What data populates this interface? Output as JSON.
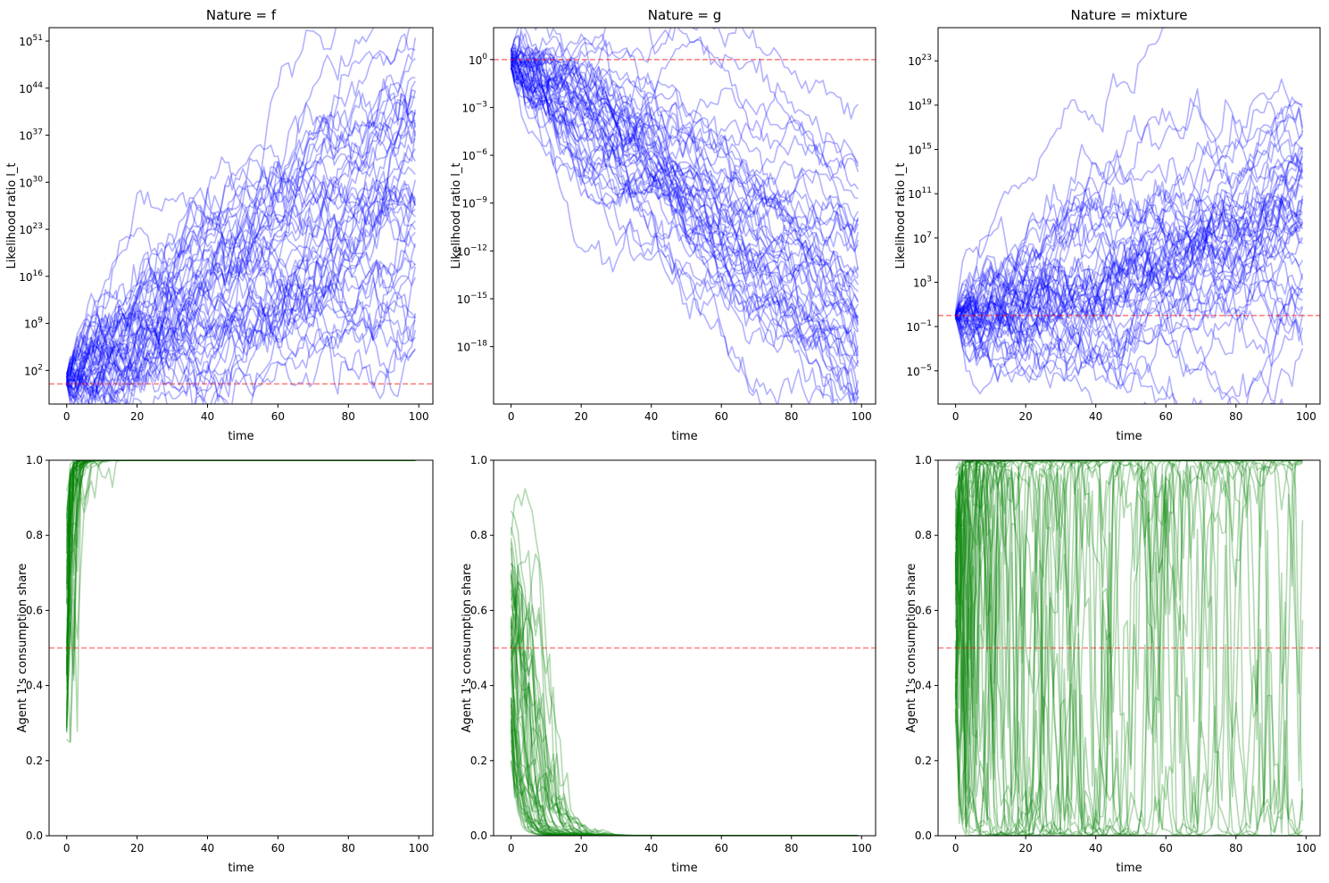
{
  "figure": {
    "colors": {
      "lr_line": "#0000ff",
      "share_line": "#008000",
      "ref_line": "#ff0000"
    },
    "line_alpha": 0.3,
    "ref_alpha": 0.5
  },
  "chart_data": [
    {
      "type": "line",
      "id": "lr-f",
      "title": "Nature = f",
      "xlabel": "time",
      "ylabel": "Likelihood ratio l_t",
      "yscale": "log",
      "xlim": [
        -5,
        104
      ],
      "ylim_exp": [
        -3,
        53
      ],
      "xticks": [
        0,
        20,
        40,
        60,
        80,
        100
      ],
      "yticks": [
        {
          "base": "10",
          "exp": "2"
        },
        {
          "base": "10",
          "exp": "9"
        },
        {
          "base": "10",
          "exp": "16"
        },
        {
          "base": "10",
          "exp": "23"
        },
        {
          "base": "10",
          "exp": "30"
        },
        {
          "base": "10",
          "exp": "37"
        },
        {
          "base": "10",
          "exp": "44"
        },
        {
          "base": "10",
          "exp": "51"
        }
      ],
      "ref_line_exp": 0,
      "series_count": 50,
      "n_steps": 100,
      "start_exp": [
        -0.3,
        1.5
      ],
      "drift_exp": 0.3,
      "vol_exp": 1.6,
      "color": "#0000ff",
      "grid": false
    },
    {
      "type": "line",
      "id": "lr-g",
      "title": "Nature = g",
      "xlabel": "time",
      "ylabel": "Likelihood ratio l_t",
      "yscale": "log",
      "xlim": [
        -5,
        104
      ],
      "ylim_exp": [
        -21.6,
        2
      ],
      "xticks": [
        0,
        20,
        40,
        60,
        80,
        100
      ],
      "yticks": [
        {
          "base": "10",
          "exp": "0"
        },
        {
          "base": "10",
          "exp": "−3"
        },
        {
          "base": "10",
          "exp": "−6"
        },
        {
          "base": "10",
          "exp": "−9"
        },
        {
          "base": "10",
          "exp": "−12"
        },
        {
          "base": "10",
          "exp": "−15"
        },
        {
          "base": "10",
          "exp": "−18"
        }
      ],
      "ref_line_exp": 0,
      "series_count": 50,
      "n_steps": 100,
      "start_exp": [
        -0.6,
        0.7
      ],
      "drift_exp": -0.165,
      "vol_exp": 0.55,
      "color": "#0000ff",
      "grid": false
    },
    {
      "type": "line",
      "id": "lr-mix",
      "title": "Nature = mixture",
      "xlabel": "time",
      "ylabel": "Likelihood ratio l_t",
      "yscale": "log",
      "xlim": [
        -5,
        104
      ],
      "ylim_exp": [
        -8,
        26
      ],
      "xticks": [
        0,
        20,
        40,
        60,
        80,
        100
      ],
      "yticks": [
        {
          "base": "10",
          "exp": "−5"
        },
        {
          "base": "10",
          "exp": "−1"
        },
        {
          "base": "10",
          "exp": "3"
        },
        {
          "base": "10",
          "exp": "7"
        },
        {
          "base": "10",
          "exp": "11"
        },
        {
          "base": "10",
          "exp": "15"
        },
        {
          "base": "10",
          "exp": "19"
        },
        {
          "base": "10",
          "exp": "23"
        }
      ],
      "ref_line_exp": 0,
      "series_count": 50,
      "n_steps": 100,
      "start_exp": [
        -0.3,
        0.4
      ],
      "drift_exp": 0.09,
      "vol_exp": 0.95,
      "color": "#0000ff",
      "grid": false
    },
    {
      "type": "line",
      "id": "share-f",
      "title": "",
      "xlabel": "time",
      "ylabel": "Agent 1's consumption share",
      "yscale": "linear",
      "xlim": [
        -5,
        104
      ],
      "ylim": [
        0,
        1
      ],
      "xticks": [
        0,
        20,
        40,
        60,
        80,
        100
      ],
      "yticks": [
        "0.0",
        "0.2",
        "0.4",
        "0.6",
        "0.8",
        "1.0"
      ],
      "ref_line": 0.5,
      "series_count": 50,
      "n_steps": 100,
      "start_share": [
        0.25,
        0.95
      ],
      "drift_logit": 1.1,
      "vol_logit": 1.2,
      "color": "#008000",
      "grid": false
    },
    {
      "type": "line",
      "id": "share-g",
      "title": "",
      "xlabel": "time",
      "ylabel": "Agent 1's consumption share",
      "yscale": "linear",
      "xlim": [
        -5,
        104
      ],
      "ylim": [
        0,
        1
      ],
      "xticks": [
        0,
        20,
        40,
        60,
        80,
        100
      ],
      "yticks": [
        "0.0",
        "0.2",
        "0.4",
        "0.6",
        "0.8",
        "1.0"
      ],
      "ref_line": 0.5,
      "series_count": 50,
      "n_steps": 100,
      "start_share": [
        0.2,
        0.87
      ],
      "drift_logit": -0.38,
      "vol_logit": 0.45,
      "color": "#008000",
      "grid": false
    },
    {
      "type": "line",
      "id": "share-mix",
      "title": "",
      "xlabel": "time",
      "ylabel": "Agent 1's consumption share",
      "yscale": "linear",
      "xlim": [
        -5,
        104
      ],
      "ylim": [
        0,
        1
      ],
      "xticks": [
        0,
        20,
        40,
        60,
        80,
        100
      ],
      "yticks": [
        "0.0",
        "0.2",
        "0.4",
        "0.6",
        "0.8",
        "1.0"
      ],
      "ref_line": 0.5,
      "series_count": 50,
      "n_steps": 100,
      "start_share": [
        0.3,
        0.99
      ],
      "drift_logit": 0.18,
      "vol_logit": 1.9,
      "color": "#008000",
      "grid": false
    }
  ]
}
